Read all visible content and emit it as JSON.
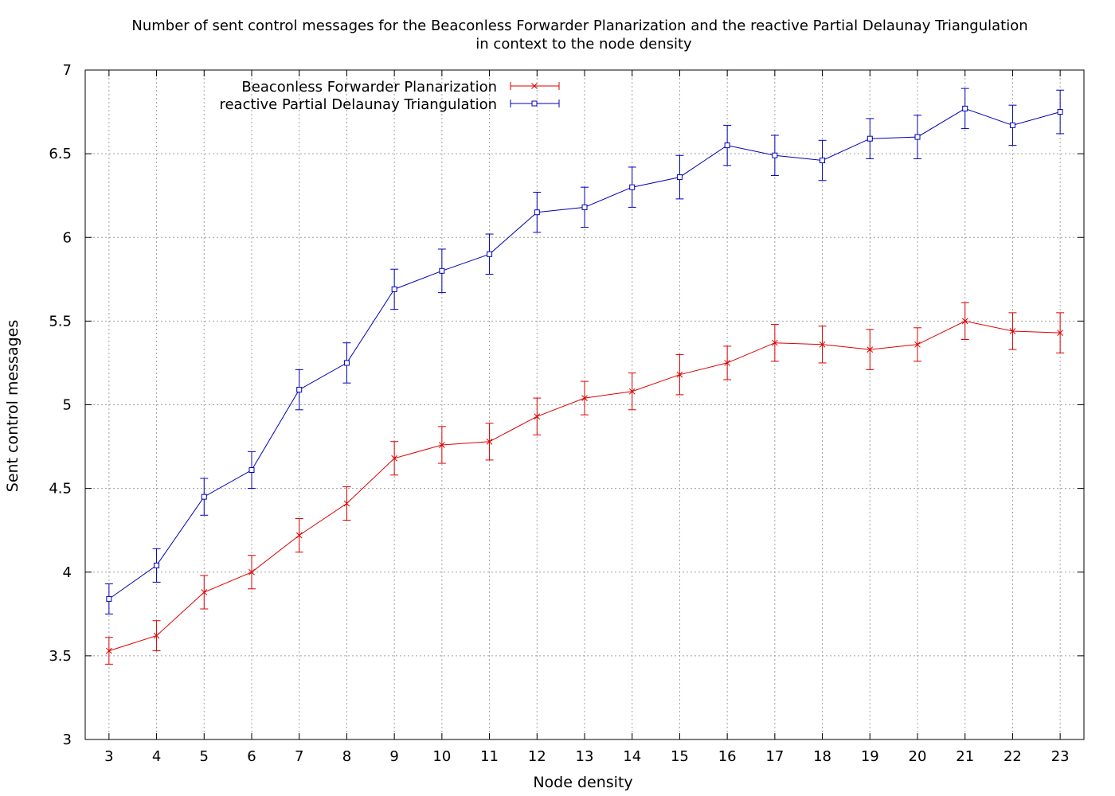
{
  "chart_data": {
    "type": "line",
    "title": "Number of sent control messages for the Beaconless Forwarder Planarization and the reactive Partial Delaunay Triangulation",
    "subtitle": "in context to the node density",
    "xlabel": "Node density",
    "ylabel": "Sent control messages",
    "xlim": [
      2.5,
      23.5
    ],
    "ylim": [
      3,
      7
    ],
    "x_ticks": [
      3,
      4,
      5,
      6,
      7,
      8,
      9,
      10,
      11,
      12,
      13,
      14,
      15,
      16,
      17,
      18,
      19,
      20,
      21,
      22,
      23
    ],
    "y_ticks": [
      3,
      3.5,
      4,
      4.5,
      5,
      5.5,
      6,
      6.5,
      7
    ],
    "y_tick_labels": [
      "3",
      "3.5",
      "4",
      "4.5",
      "5",
      "5.5",
      "6",
      "6.5",
      "7"
    ],
    "grid": true,
    "legend_position": "top-left",
    "x": [
      3,
      4,
      5,
      6,
      7,
      8,
      9,
      10,
      11,
      12,
      13,
      14,
      15,
      16,
      17,
      18,
      19,
      20,
      21,
      22,
      23
    ],
    "series": [
      {
        "name": "Beaconless Forwarder Planarization",
        "color": "#dd0000",
        "marker": "x",
        "values": [
          3.53,
          3.62,
          3.88,
          4.0,
          4.22,
          4.41,
          4.68,
          4.76,
          4.78,
          4.93,
          5.04,
          5.08,
          5.18,
          5.25,
          5.37,
          5.36,
          5.33,
          5.36,
          5.5,
          5.44,
          5.43
        ],
        "errors": [
          0.08,
          0.09,
          0.1,
          0.1,
          0.1,
          0.1,
          0.1,
          0.11,
          0.11,
          0.11,
          0.1,
          0.11,
          0.12,
          0.1,
          0.11,
          0.11,
          0.12,
          0.1,
          0.11,
          0.11,
          0.12
        ]
      },
      {
        "name": "reactive Partial Delaunay Triangulation",
        "color": "#0000bb",
        "marker": "square",
        "values": [
          3.84,
          4.04,
          4.45,
          4.61,
          5.09,
          5.25,
          5.69,
          5.8,
          5.9,
          6.15,
          6.18,
          6.3,
          6.36,
          6.55,
          6.49,
          6.46,
          6.59,
          6.6,
          6.77,
          6.67,
          6.75
        ],
        "errors": [
          0.09,
          0.1,
          0.11,
          0.11,
          0.12,
          0.12,
          0.12,
          0.13,
          0.12,
          0.12,
          0.12,
          0.12,
          0.13,
          0.12,
          0.12,
          0.12,
          0.12,
          0.13,
          0.12,
          0.12,
          0.13
        ]
      }
    ]
  }
}
